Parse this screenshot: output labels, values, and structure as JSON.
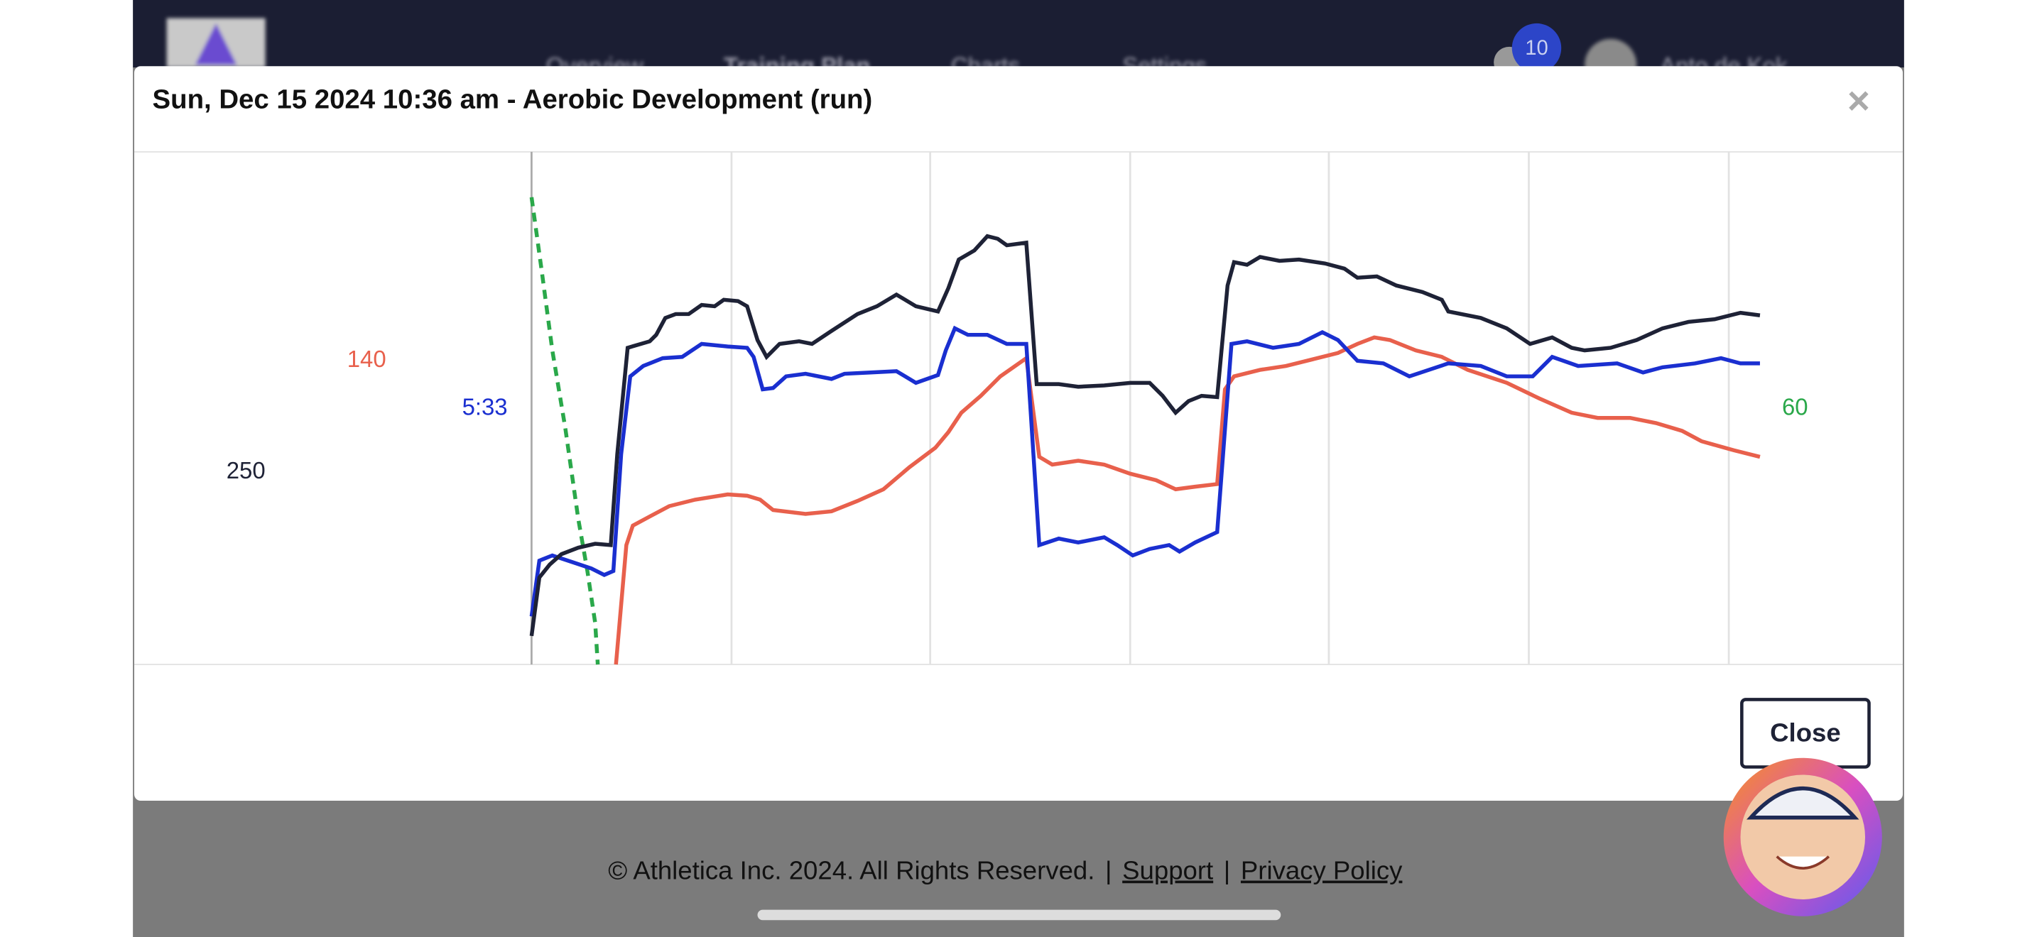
{
  "header": {
    "nav": [
      "Overview",
      "Training Plan",
      "Charts",
      "Settings"
    ],
    "badge": "10",
    "user": "Anto de Kok"
  },
  "modal": {
    "title": "Sun, Dec 15 2024 10:36 am - Aerobic Development (run)",
    "close_icon": "×",
    "chart_labels": {
      "heart_rate": "140",
      "pace": "5:33",
      "power": "250",
      "cadence": "60"
    },
    "button": "Close"
  },
  "footer": {
    "copyright": "© Athletica Inc. 2024. All Rights Reserved.",
    "separator": "|",
    "support": "Support",
    "privacy": "Privacy Policy"
  }
}
